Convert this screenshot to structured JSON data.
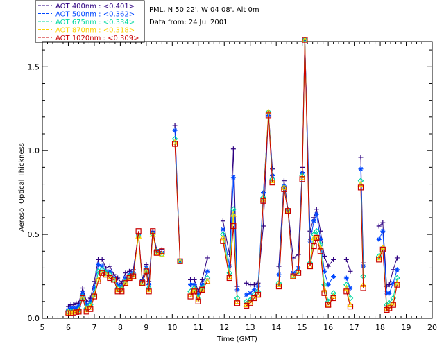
{
  "chart_data": {
    "type": "line",
    "title": "PML, N 50 22', W 04 08', Alt 0m",
    "subtitle": "Data from: 24 Jul 2001",
    "xlabel": "Time (GMT)",
    "ylabel": "Aerosol Optical Thickness",
    "xlim": [
      5,
      20
    ],
    "ylim": [
      0,
      1.65
    ],
    "xticks": [
      5,
      6,
      7,
      8,
      9,
      10,
      11,
      12,
      13,
      14,
      15,
      16,
      17,
      18,
      19,
      20
    ],
    "xtick_labels": [
      "5",
      "6",
      "7",
      "8",
      "9",
      "10",
      "11",
      "12",
      "13",
      "14",
      "15",
      "16",
      "17",
      "18",
      "19",
      "20"
    ],
    "yticks": [
      0,
      0.5,
      1.0,
      1.5
    ],
    "ytick_labels": [
      "0.0",
      "0.5",
      "1.0",
      "1.5"
    ],
    "x": [
      6.0,
      6.1,
      6.2,
      6.3,
      6.4,
      6.55,
      6.7,
      6.85,
      7.0,
      7.15,
      7.3,
      7.45,
      7.6,
      7.75,
      7.9,
      8.05,
      8.2,
      8.35,
      8.5,
      8.7,
      8.85,
      9.0,
      9.1,
      9.25,
      9.4,
      9.6,
      10.1,
      10.3,
      10.7,
      10.85,
      11.0,
      11.15,
      11.35,
      11.95,
      12.2,
      12.35,
      12.5,
      12.85,
      13.0,
      13.15,
      13.3,
      13.5,
      13.7,
      13.85,
      14.1,
      14.3,
      14.45,
      14.65,
      14.85,
      15.0,
      15.1,
      15.3,
      15.45,
      15.55,
      15.7,
      15.85,
      16.0,
      16.2,
      16.7,
      16.85,
      17.25,
      17.35,
      17.95,
      18.1,
      18.25,
      18.35,
      18.5,
      18.65
    ],
    "breaks": [
      9.8,
      10.5,
      11.6,
      12.7,
      14.0,
      16.4,
      17.1,
      17.6,
      18.8
    ],
    "series": [
      {
        "name": "AOT  400nm",
        "mean": "<0.401>",
        "color": "#2d0080",
        "marker": "plus",
        "values": [
          0.07,
          0.08,
          0.08,
          0.09,
          0.09,
          0.18,
          0.1,
          0.12,
          0.22,
          0.35,
          0.35,
          0.3,
          0.31,
          0.26,
          0.24,
          0.21,
          0.27,
          0.28,
          0.29,
          0.5,
          0.23,
          0.32,
          0.22,
          0.52,
          0.41,
          0.41,
          1.15,
          0.34,
          0.23,
          0.23,
          0.16,
          0.23,
          0.36,
          0.58,
          0.38,
          1.01,
          0.19,
          0.21,
          0.2,
          0.2,
          0.21,
          0.55,
          1.23,
          0.89,
          0.31,
          0.82,
          0.65,
          0.36,
          0.38,
          0.9,
          1.66,
          0.52,
          0.6,
          0.65,
          0.52,
          0.37,
          0.31,
          0.35,
          0.35,
          0.28,
          0.96,
          0.33,
          0.55,
          0.57,
          0.19,
          0.2,
          0.29,
          0.36
        ]
      },
      {
        "name": "AOT  500nm",
        "mean": "<0.362>",
        "color": "#0047ff",
        "marker": "star",
        "values": [
          0.05,
          0.06,
          0.06,
          0.06,
          0.07,
          0.15,
          0.08,
          0.1,
          0.18,
          0.32,
          0.31,
          0.28,
          0.28,
          0.24,
          0.2,
          0.19,
          0.24,
          0.26,
          0.27,
          0.49,
          0.22,
          0.3,
          0.2,
          0.51,
          0.4,
          0.39,
          1.12,
          0.34,
          0.2,
          0.2,
          0.14,
          0.2,
          0.28,
          0.53,
          0.31,
          0.84,
          0.17,
          0.14,
          0.15,
          0.17,
          0.19,
          0.75,
          1.21,
          0.85,
          0.26,
          0.79,
          0.64,
          0.27,
          0.3,
          0.87,
          1.66,
          0.46,
          0.58,
          0.62,
          0.47,
          0.28,
          0.2,
          0.25,
          0.24,
          0.18,
          0.89,
          0.31,
          0.47,
          0.52,
          0.15,
          0.15,
          0.21,
          0.29
        ]
      },
      {
        "name": "AOT  675nm",
        "mean": "<0.334>",
        "color": "#00d8a0",
        "marker": "diamond",
        "values": [
          0.04,
          0.04,
          0.04,
          0.04,
          0.05,
          0.13,
          0.06,
          0.08,
          0.14,
          0.28,
          0.29,
          0.27,
          0.26,
          0.23,
          0.18,
          0.18,
          0.22,
          0.25,
          0.26,
          0.49,
          0.21,
          0.29,
          0.18,
          0.5,
          0.4,
          0.38,
          1.07,
          0.34,
          0.16,
          0.18,
          0.12,
          0.18,
          0.24,
          0.5,
          0.27,
          0.65,
          0.12,
          0.1,
          0.11,
          0.14,
          0.16,
          0.72,
          1.23,
          0.83,
          0.21,
          0.78,
          0.64,
          0.25,
          0.28,
          0.85,
          1.66,
          0.33,
          0.5,
          0.52,
          0.44,
          0.2,
          0.1,
          0.15,
          0.2,
          0.12,
          0.82,
          0.25,
          0.37,
          0.42,
          0.08,
          0.09,
          0.12,
          0.24
        ]
      },
      {
        "name": "AOT  870nm",
        "mean": "<0.318>",
        "color": "#ffd200",
        "marker": "triangle",
        "values": [
          0.035,
          0.035,
          0.04,
          0.04,
          0.045,
          0.12,
          0.05,
          0.065,
          0.14,
          0.23,
          0.27,
          0.26,
          0.25,
          0.23,
          0.17,
          0.17,
          0.21,
          0.24,
          0.25,
          0.49,
          0.21,
          0.28,
          0.17,
          0.5,
          0.39,
          0.38,
          1.05,
          0.34,
          0.14,
          0.17,
          0.11,
          0.17,
          0.22,
          0.48,
          0.25,
          0.62,
          0.1,
          0.08,
          0.095,
          0.12,
          0.14,
          0.71,
          1.23,
          0.82,
          0.2,
          0.78,
          0.64,
          0.25,
          0.27,
          0.84,
          1.66,
          0.31,
          0.48,
          0.48,
          0.42,
          0.17,
          0.08,
          0.13,
          0.18,
          0.08,
          0.8,
          0.2,
          0.36,
          0.42,
          0.06,
          0.07,
          0.09,
          0.21
        ]
      },
      {
        "name": "AOT 1020nm",
        "mean": "<0.309>",
        "color": "#c80000",
        "marker": "square",
        "values": [
          0.03,
          0.03,
          0.03,
          0.035,
          0.04,
          0.12,
          0.04,
          0.055,
          0.13,
          0.22,
          0.27,
          0.26,
          0.24,
          0.23,
          0.16,
          0.16,
          0.21,
          0.24,
          0.25,
          0.52,
          0.21,
          0.28,
          0.16,
          0.52,
          0.39,
          0.4,
          1.04,
          0.34,
          0.13,
          0.16,
          0.1,
          0.17,
          0.22,
          0.46,
          0.24,
          0.55,
          0.09,
          0.075,
          0.09,
          0.12,
          0.14,
          0.7,
          1.21,
          0.81,
          0.19,
          0.77,
          0.64,
          0.25,
          0.27,
          0.83,
          1.66,
          0.31,
          0.43,
          0.48,
          0.4,
          0.15,
          0.08,
          0.12,
          0.16,
          0.07,
          0.78,
          0.18,
          0.35,
          0.41,
          0.05,
          0.06,
          0.08,
          0.2
        ]
      }
    ]
  }
}
